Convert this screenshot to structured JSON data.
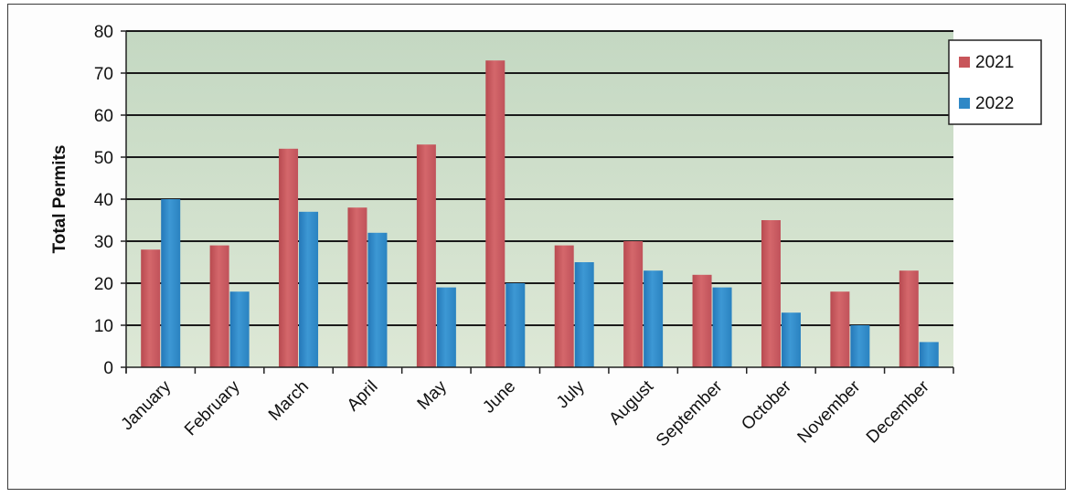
{
  "chart_data": {
    "type": "bar",
    "ylabel": "Total Permits",
    "xlabel": "",
    "ylim": [
      0,
      80
    ],
    "yticks": [
      0,
      10,
      20,
      30,
      40,
      50,
      60,
      70,
      80
    ],
    "grid": true,
    "legend_position": "top-right",
    "categories": [
      "January",
      "February",
      "March",
      "April",
      "May",
      "June",
      "July",
      "August",
      "September",
      "October",
      "November",
      "December"
    ],
    "series": [
      {
        "name": "2021",
        "color": "#c8555a",
        "values": [
          28,
          29,
          52,
          38,
          53,
          73,
          29,
          30,
          22,
          35,
          18,
          23
        ]
      },
      {
        "name": "2022",
        "color": "#2f88c6",
        "values": [
          40,
          18,
          37,
          32,
          19,
          20,
          25,
          23,
          19,
          13,
          10,
          6
        ]
      }
    ]
  },
  "colors": {
    "plot_background": "#cdddc9",
    "gridline": "#1a1a1a"
  }
}
